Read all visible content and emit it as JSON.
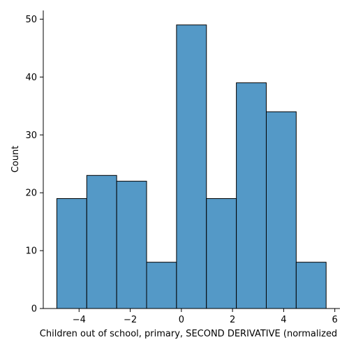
{
  "chart_data": {
    "type": "bar",
    "xlabel": "Children out of school, primary, SECOND DERIVATIVE (normalized",
    "ylabel": "Count",
    "bins": [
      {
        "x0": -4.87,
        "x1": -3.7,
        "count": 19
      },
      {
        "x0": -3.7,
        "x1": -2.53,
        "count": 23
      },
      {
        "x0": -2.53,
        "x1": -1.36,
        "count": 22
      },
      {
        "x0": -1.36,
        "x1": -0.19,
        "count": 8
      },
      {
        "x0": -0.19,
        "x1": 0.98,
        "count": 49
      },
      {
        "x0": 0.98,
        "x1": 2.15,
        "count": 19
      },
      {
        "x0": 2.15,
        "x1": 3.32,
        "count": 39
      },
      {
        "x0": 3.32,
        "x1": 4.49,
        "count": 34
      },
      {
        "x0": 4.49,
        "x1": 5.66,
        "count": 8
      }
    ],
    "xlim": [
      -5.4,
      6.2
    ],
    "ylim": [
      0,
      51.5
    ],
    "xticks": [
      -4,
      -2,
      0,
      2,
      4,
      6
    ],
    "xtick_labels": [
      "−4",
      "−2",
      "0",
      "2",
      "4",
      "6"
    ],
    "yticks": [
      0,
      10,
      20,
      30,
      40,
      50
    ],
    "ytick_labels": [
      "0",
      "10",
      "20",
      "30",
      "40",
      "50"
    ],
    "bar_color": "#5499c7",
    "edge_color": "#000000",
    "grid": false
  }
}
